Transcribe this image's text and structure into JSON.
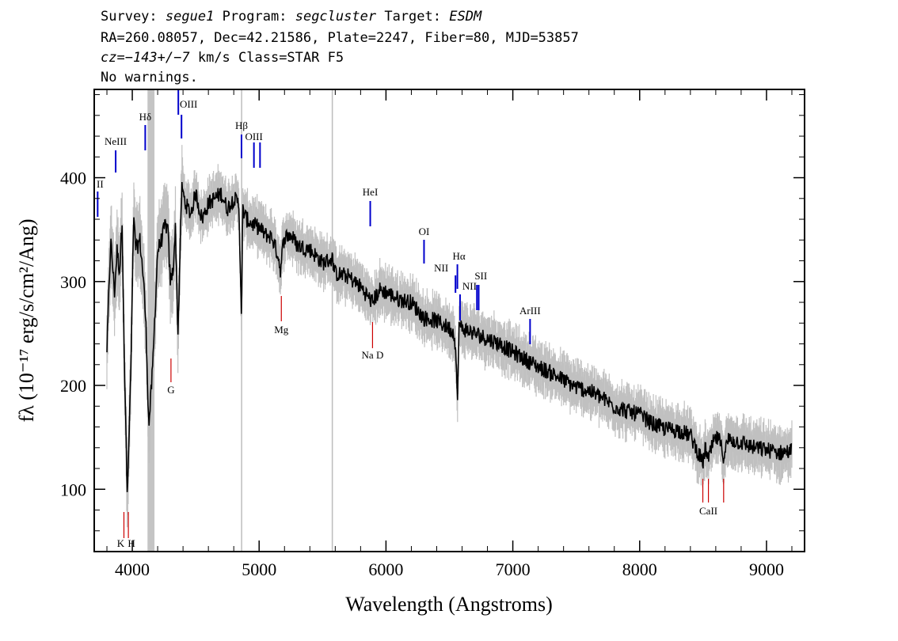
{
  "header": {
    "survey_label": "Survey:",
    "survey": "segue1",
    "program_label": "Program:",
    "program": "segcluster",
    "target_label": "Target:",
    "target": "ESDM",
    "line2": "RA=260.08057, Dec=42.21586, Plate=2247, Fiber=80, MJD=53857",
    "cz_prefix": "cz=",
    "cz_value": "−143+/−7",
    "cz_suffix": " km/s Class=STAR F5",
    "line4": "No warnings."
  },
  "chart_data": {
    "type": "line",
    "xlabel": "Wavelength (Angstroms)",
    "ylabel": "fλ (10⁻¹⁷ erg/s/cm²/Ang)",
    "xlim": [
      3700,
      9300
    ],
    "ylim": [
      40,
      485
    ],
    "x_ticks": [
      4000,
      5000,
      6000,
      7000,
      8000,
      9000
    ],
    "y_ticks": [
      100,
      200,
      300,
      400
    ],
    "grid": false,
    "colors": {
      "flux": "#000000",
      "error": "#c0c0c0",
      "emission": "#0000cc",
      "absorption": "#cc0000"
    },
    "vertical_lines": [
      4862,
      5577
    ],
    "gap_band": [
      4120,
      4175
    ],
    "series": [
      {
        "x": [
          3800,
          3830,
          3860,
          3880,
          3900,
          3920,
          3940,
          3950,
          3960,
          3970,
          3990,
          4010,
          4030,
          4060,
          4090,
          4110,
          4130,
          4160,
          4200,
          4230,
          4260,
          4280,
          4300,
          4320,
          4340,
          4360,
          4390,
          4420,
          4460,
          4500,
          4550,
          4600,
          4650,
          4700,
          4750,
          4800,
          4840,
          4855,
          4862,
          4870,
          4900,
          4950,
          5000,
          5050,
          5100,
          5150,
          5170,
          5183,
          5200,
          5250,
          5300,
          5350,
          5400,
          5500,
          5577,
          5600,
          5700,
          5800,
          5893,
          5950,
          6000,
          6100,
          6200,
          6300,
          6400,
          6500,
          6540,
          6555,
          6563,
          6575,
          6600,
          6700,
          6800,
          6900,
          7000,
          7100,
          7200,
          7300,
          7400,
          7500,
          7600,
          7700,
          7800,
          7900,
          8000,
          8100,
          8200,
          8300,
          8400,
          8498,
          8520,
          8542,
          8580,
          8620,
          8662,
          8700,
          8800,
          8900,
          9000,
          9100,
          9200
        ],
        "y": [
          235,
          340,
          290,
          330,
          310,
          360,
          200,
          160,
          90,
          130,
          220,
          360,
          330,
          340,
          300,
          250,
          160,
          215,
          330,
          340,
          355,
          350,
          300,
          310,
          350,
          250,
          390,
          375,
          365,
          385,
          360,
          375,
          380,
          385,
          370,
          380,
          375,
          300,
          255,
          370,
          360,
          355,
          352,
          345,
          343,
          325,
          310,
          330,
          343,
          345,
          335,
          333,
          331,
          318,
          322,
          308,
          305,
          295,
          280,
          292,
          290,
          283,
          280,
          265,
          262,
          255,
          250,
          220,
          175,
          258,
          255,
          250,
          245,
          240,
          232,
          225,
          218,
          212,
          205,
          198,
          195,
          188,
          180,
          175,
          172,
          163,
          158,
          157,
          152,
          125,
          140,
          128,
          145,
          150,
          132,
          148,
          145,
          140,
          138,
          135,
          137
        ]
      }
    ],
    "line_labels": [
      {
        "text": "NeIII",
        "x": 3869,
        "kind": "emission"
      },
      {
        "text": "Hδ",
        "x": 4102,
        "kind": "emission"
      },
      {
        "text": "OIII",
        "x": 4363,
        "kind": "emission"
      },
      {
        "text": "Hβ",
        "x": 4861,
        "kind": "emission"
      },
      {
        "text": "OIII",
        "x": 4959,
        "kind": "emission"
      },
      {
        "text": "HeI",
        "x": 5876,
        "kind": "emission"
      },
      {
        "text": "OI",
        "x": 6300,
        "kind": "emission"
      },
      {
        "text": "NII",
        "x": 6548,
        "kind": "emission"
      },
      {
        "text": "Hα",
        "x": 6563,
        "kind": "emission"
      },
      {
        "text": "NII",
        "x": 6584,
        "kind": "emission"
      },
      {
        "text": "SII",
        "x": 6717,
        "kind": "emission"
      },
      {
        "text": "ArIII",
        "x": 7136,
        "kind": "emission"
      },
      {
        "text": "II",
        "x": 3727,
        "kind": "emission"
      },
      {
        "text": "K",
        "x": 3934,
        "kind": "absorption"
      },
      {
        "text": "H",
        "x": 3969,
        "kind": "absorption"
      },
      {
        "text": "G",
        "x": 4305,
        "kind": "absorption"
      },
      {
        "text": "Mg",
        "x": 5175,
        "kind": "absorption"
      },
      {
        "text": "Na D",
        "x": 5894,
        "kind": "absorption"
      },
      {
        "text": "CaII",
        "x": 8542,
        "kind": "absorption"
      }
    ]
  }
}
